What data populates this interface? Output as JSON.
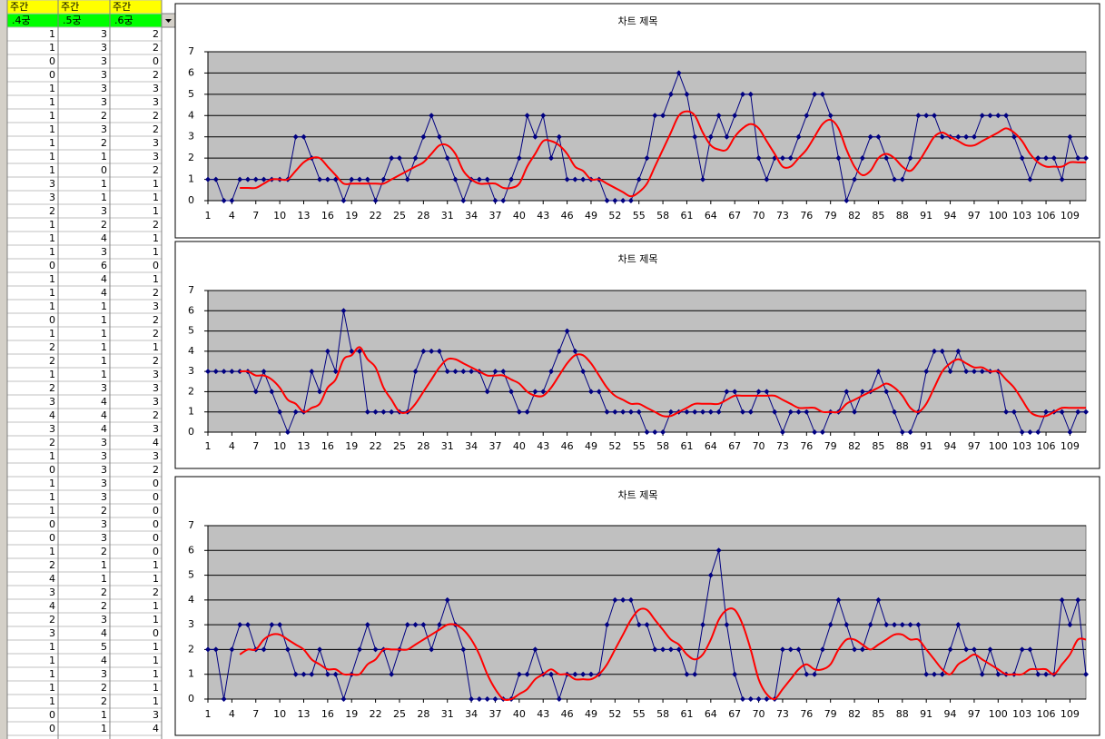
{
  "sheet": {
    "header": [
      "주간",
      "주간",
      "주간"
    ],
    "subheader": [
      ".4궁",
      ".5궁",
      ".6궁"
    ]
  },
  "chart_data": [
    {
      "type": "line",
      "title": "차트 제목",
      "x": [
        1,
        2,
        3,
        4,
        5,
        6,
        7,
        8,
        9,
        10,
        11,
        12,
        13,
        14,
        15,
        16,
        17,
        18,
        19,
        20,
        21,
        22,
        23,
        24,
        25,
        26,
        27,
        28,
        29,
        30,
        31,
        32,
        33,
        34,
        35,
        36,
        37,
        38,
        39,
        40,
        41,
        42,
        43,
        44,
        45,
        46,
        47,
        48,
        49,
        50,
        51,
        52,
        53,
        54,
        55,
        56,
        57,
        58,
        59,
        60,
        61,
        62,
        63,
        64,
        65,
        66,
        67,
        68,
        69,
        70,
        71,
        72,
        73,
        74,
        75,
        76,
        77,
        78,
        79,
        80,
        81,
        82,
        83,
        84,
        85,
        86,
        87,
        88,
        89,
        90,
        91,
        92,
        93,
        94,
        95,
        96,
        97,
        98,
        99,
        100,
        101,
        102,
        103,
        104,
        105,
        106,
        107,
        108,
        109,
        110,
        111
      ],
      "xlim": [
        1,
        111
      ],
      "xticks": [
        1,
        4,
        7,
        10,
        13,
        16,
        19,
        22,
        25,
        28,
        31,
        34,
        37,
        40,
        43,
        46,
        49,
        52,
        55,
        58,
        61,
        64,
        67,
        70,
        73,
        76,
        79,
        82,
        85,
        88,
        91,
        94,
        97,
        100,
        103,
        106,
        109
      ],
      "ylim": [
        0,
        7
      ],
      "yticks": [
        0,
        1,
        2,
        3,
        4,
        5,
        6,
        7
      ],
      "grid": true,
      "series": [
        {
          "color": "#000080",
          "marker": "diamond",
          "values": [
            1,
            1,
            0,
            0,
            1,
            1,
            1,
            1,
            1,
            1,
            1,
            3,
            3,
            2,
            1,
            1,
            1,
            0,
            1,
            1,
            1,
            0,
            1,
            2,
            2,
            1,
            2,
            3,
            4,
            3,
            2,
            1,
            0,
            1,
            1,
            1,
            0,
            0,
            1,
            2,
            4,
            3,
            4,
            2,
            3,
            1,
            1,
            1,
            1,
            1,
            0,
            0,
            0,
            0,
            1,
            2,
            4,
            4,
            5,
            6,
            5,
            3,
            1,
            3,
            4,
            3,
            4,
            5,
            5,
            2,
            1,
            2,
            2,
            2,
            3,
            4,
            5,
            5,
            4,
            2,
            0,
            1,
            2,
            3,
            3,
            2,
            1,
            1,
            2,
            4,
            4,
            4,
            3,
            3,
            3,
            3,
            3,
            4,
            4,
            4,
            4,
            3,
            2,
            1,
            2,
            2,
            2,
            1,
            3,
            2,
            2
          ]
        },
        {
          "color": "#ff0000",
          "smooth": true,
          "values": [
            null,
            null,
            null,
            null,
            0.6,
            0.6,
            0.6,
            0.8,
            1,
            1,
            1,
            1.4,
            1.8,
            2,
            2,
            1.6,
            1.2,
            0.8,
            0.8,
            0.8,
            0.8,
            0.8,
            0.8,
            1,
            1.2,
            1.4,
            1.6,
            1.8,
            2.2,
            2.6,
            2.6,
            2.2,
            1.4,
            1,
            0.8,
            0.8,
            0.8,
            0.6,
            0.6,
            0.8,
            1.6,
            2.2,
            2.8,
            2.8,
            2.6,
            2.2,
            1.6,
            1.4,
            1,
            1,
            0.8,
            0.6,
            0.4,
            0.2,
            0.4,
            0.8,
            1.6,
            2.4,
            3.2,
            4,
            4.2,
            4,
            3.2,
            2.6,
            2.4,
            2.4,
            3,
            3.4,
            3.6,
            3.4,
            2.8,
            2.2,
            1.6,
            1.6,
            2,
            2.4,
            3,
            3.6,
            3.8,
            3.4,
            2.4,
            1.6,
            1.2,
            1.4,
            2,
            2.2,
            2,
            1.6,
            1.4,
            1.8,
            2.4,
            3,
            3.2,
            3,
            2.8,
            2.6,
            2.6,
            2.8,
            3,
            3.2,
            3.4,
            3.2,
            2.8,
            2.2,
            1.8,
            1.6,
            1.6,
            1.6,
            1.8,
            1.8,
            1.8
          ]
        }
      ]
    },
    {
      "type": "line",
      "title": "차트 제목",
      "x": [
        1,
        2,
        3,
        4,
        5,
        6,
        7,
        8,
        9,
        10,
        11,
        12,
        13,
        14,
        15,
        16,
        17,
        18,
        19,
        20,
        21,
        22,
        23,
        24,
        25,
        26,
        27,
        28,
        29,
        30,
        31,
        32,
        33,
        34,
        35,
        36,
        37,
        38,
        39,
        40,
        41,
        42,
        43,
        44,
        45,
        46,
        47,
        48,
        49,
        50,
        51,
        52,
        53,
        54,
        55,
        56,
        57,
        58,
        59,
        60,
        61,
        62,
        63,
        64,
        65,
        66,
        67,
        68,
        69,
        70,
        71,
        72,
        73,
        74,
        75,
        76,
        77,
        78,
        79,
        80,
        81,
        82,
        83,
        84,
        85,
        86,
        87,
        88,
        89,
        90,
        91,
        92,
        93,
        94,
        95,
        96,
        97,
        98,
        99,
        100,
        101,
        102,
        103,
        104,
        105,
        106,
        107,
        108,
        109,
        110,
        111
      ],
      "xlim": [
        1,
        111
      ],
      "xticks": [
        1,
        4,
        7,
        10,
        13,
        16,
        19,
        22,
        25,
        28,
        31,
        34,
        37,
        40,
        43,
        46,
        49,
        52,
        55,
        58,
        61,
        64,
        67,
        70,
        73,
        76,
        79,
        82,
        85,
        88,
        91,
        94,
        97,
        100,
        103,
        106,
        109
      ],
      "ylim": [
        0,
        7
      ],
      "yticks": [
        0,
        1,
        2,
        3,
        4,
        5,
        6,
        7
      ],
      "grid": true,
      "series": [
        {
          "color": "#000080",
          "marker": "diamond",
          "values": [
            3,
            3,
            3,
            3,
            3,
            3,
            2,
            3,
            2,
            1,
            0,
            1,
            1,
            3,
            2,
            4,
            3,
            6,
            4,
            4,
            1,
            1,
            1,
            1,
            1,
            1,
            3,
            4,
            4,
            4,
            3,
            3,
            3,
            3,
            3,
            2,
            3,
            3,
            2,
            1,
            1,
            2,
            2,
            3,
            4,
            5,
            4,
            3,
            2,
            2,
            1,
            1,
            1,
            1,
            1,
            0,
            0,
            0,
            1,
            1,
            1,
            1,
            1,
            1,
            1,
            2,
            2,
            1,
            1,
            2,
            2,
            1,
            0,
            1,
            1,
            1,
            0,
            0,
            1,
            1,
            2,
            1,
            2,
            2,
            3,
            2,
            1,
            0,
            0,
            1,
            3,
            4,
            4,
            3,
            4,
            3,
            3,
            3,
            3,
            3,
            1,
            1,
            0,
            0,
            0,
            1,
            1,
            1,
            0,
            1,
            1
          ]
        },
        {
          "color": "#ff0000",
          "smooth": true,
          "values": [
            null,
            null,
            null,
            null,
            3,
            3,
            2.8,
            2.8,
            2.6,
            2.2,
            1.6,
            1.4,
            1,
            1.2,
            1.4,
            2.2,
            2.6,
            3.6,
            3.8,
            4.2,
            3.6,
            3.2,
            2.2,
            1.6,
            1,
            1,
            1.4,
            2,
            2.6,
            3.2,
            3.6,
            3.6,
            3.4,
            3.2,
            3,
            2.8,
            2.8,
            2.8,
            2.6,
            2.4,
            2,
            1.8,
            1.8,
            2.2,
            2.8,
            3.4,
            3.8,
            3.8,
            3.4,
            2.8,
            2.2,
            1.8,
            1.6,
            1.4,
            1.4,
            1.2,
            1,
            0.8,
            0.8,
            1,
            1.2,
            1.4,
            1.4,
            1.4,
            1.4,
            1.6,
            1.8,
            1.8,
            1.8,
            1.8,
            1.8,
            1.8,
            1.6,
            1.4,
            1.2,
            1.2,
            1.2,
            1,
            1,
            1,
            1.4,
            1.6,
            1.8,
            2,
            2.2,
            2.4,
            2.2,
            1.8,
            1.2,
            1,
            1.4,
            2.2,
            3,
            3.4,
            3.6,
            3.4,
            3.2,
            3.2,
            3,
            3,
            2.6,
            2.2,
            1.6,
            1,
            0.8,
            0.8,
            1,
            1.2,
            1.2,
            1.2,
            1.2
          ]
        }
      ]
    },
    {
      "type": "line",
      "title": "차트 제목",
      "x": [
        1,
        2,
        3,
        4,
        5,
        6,
        7,
        8,
        9,
        10,
        11,
        12,
        13,
        14,
        15,
        16,
        17,
        18,
        19,
        20,
        21,
        22,
        23,
        24,
        25,
        26,
        27,
        28,
        29,
        30,
        31,
        32,
        33,
        34,
        35,
        36,
        37,
        38,
        39,
        40,
        41,
        42,
        43,
        44,
        45,
        46,
        47,
        48,
        49,
        50,
        51,
        52,
        53,
        54,
        55,
        56,
        57,
        58,
        59,
        60,
        61,
        62,
        63,
        64,
        65,
        66,
        67,
        68,
        69,
        70,
        71,
        72,
        73,
        74,
        75,
        76,
        77,
        78,
        79,
        80,
        81,
        82,
        83,
        84,
        85,
        86,
        87,
        88,
        89,
        90,
        91,
        92,
        93,
        94,
        95,
        96,
        97,
        98,
        99,
        100,
        101,
        102,
        103,
        104,
        105,
        106,
        107,
        108,
        109,
        110,
        111
      ],
      "xlim": [
        1,
        111
      ],
      "xticks": [
        1,
        4,
        7,
        10,
        13,
        16,
        19,
        22,
        25,
        28,
        31,
        34,
        37,
        40,
        43,
        46,
        49,
        52,
        55,
        58,
        61,
        64,
        67,
        70,
        73,
        76,
        79,
        82,
        85,
        88,
        91,
        94,
        97,
        100,
        103,
        106,
        109
      ],
      "ylim": [
        0,
        7
      ],
      "yticks": [
        0,
        1,
        2,
        3,
        4,
        5,
        6,
        7
      ],
      "grid": true,
      "series": [
        {
          "color": "#000080",
          "marker": "diamond",
          "values": [
            2,
            2,
            0,
            2,
            3,
            3,
            2,
            2,
            3,
            3,
            2,
            1,
            1,
            1,
            2,
            1,
            1,
            0,
            1,
            2,
            3,
            2,
            2,
            1,
            2,
            3,
            3,
            3,
            2,
            3,
            4,
            3,
            2,
            0,
            0,
            0,
            0,
            0,
            0,
            1,
            1,
            2,
            1,
            1,
            0,
            1,
            1,
            1,
            1,
            1,
            3,
            4,
            4,
            4,
            3,
            3,
            2,
            2,
            2,
            2,
            1,
            1,
            3,
            5,
            6,
            3,
            1,
            0,
            0,
            0,
            0,
            0,
            2,
            2,
            2,
            1,
            1,
            2,
            3,
            4,
            3,
            2,
            2,
            3,
            4,
            3,
            3,
            3,
            3,
            3,
            1,
            1,
            1,
            2,
            3,
            2,
            2,
            1,
            2,
            1,
            1,
            1,
            2,
            2,
            1,
            1,
            1,
            4,
            3,
            4,
            1
          ]
        },
        {
          "color": "#ff0000",
          "smooth": true,
          "values": [
            null,
            null,
            null,
            null,
            1.8,
            2,
            2,
            2.4,
            2.6,
            2.6,
            2.4,
            2.2,
            2,
            1.6,
            1.4,
            1.2,
            1.2,
            1,
            1,
            1,
            1.4,
            1.6,
            2,
            2,
            2,
            2,
            2.2,
            2.4,
            2.6,
            2.8,
            3,
            3,
            2.8,
            2.4,
            1.8,
            1,
            0.4,
            0,
            0,
            0.2,
            0.4,
            0.8,
            1,
            1.2,
            1,
            1,
            0.8,
            0.8,
            0.8,
            1,
            1.4,
            2,
            2.6,
            3.2,
            3.6,
            3.6,
            3.2,
            2.8,
            2.4,
            2.2,
            1.8,
            1.6,
            1.8,
            2.4,
            3.2,
            3.6,
            3.6,
            3,
            2,
            0.8,
            0.2,
            0,
            0.4,
            0.8,
            1.2,
            1.4,
            1.2,
            1.2,
            1.4,
            2,
            2.4,
            2.4,
            2.2,
            2,
            2.2,
            2.4,
            2.6,
            2.6,
            2.4,
            2.4,
            2,
            1.6,
            1.2,
            1,
            1.4,
            1.6,
            1.8,
            1.6,
            1.4,
            1.2,
            1,
            1,
            1,
            1.2,
            1.2,
            1.2,
            1,
            1.4,
            1.8,
            2.4,
            2.4
          ]
        }
      ]
    }
  ]
}
